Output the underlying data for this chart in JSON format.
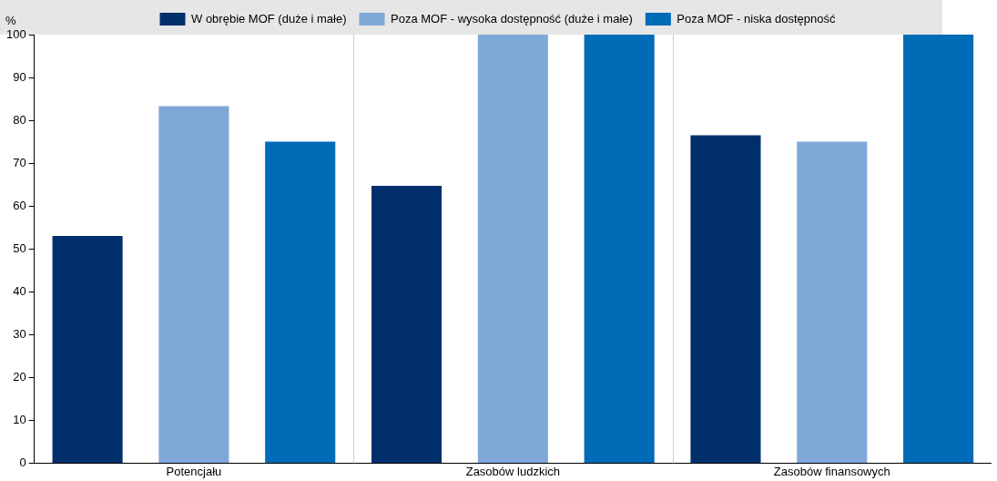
{
  "chart_data": {
    "type": "bar",
    "ylabel": "%",
    "categories": [
      "Potencjału",
      "Zasobów ludzkich",
      "Zasobów finansowych"
    ],
    "series": [
      {
        "name": "W obrębie MOF (duże i małe)",
        "color": "#002f6c",
        "values": [
          53,
          64.7,
          76.5
        ]
      },
      {
        "name": "Poza MOF - wysoka dostępność (duże i małe)",
        "color": "#7fa8d9",
        "values": [
          83.3,
          100,
          75
        ]
      },
      {
        "name": "Poza MOF - niska dostępność",
        "color": "#006bb6",
        "values": [
          75,
          100,
          100
        ]
      }
    ],
    "ylim": [
      0,
      100
    ],
    "yticks": [
      0,
      10,
      20,
      30,
      40,
      50,
      60,
      70,
      80,
      90,
      100
    ],
    "grid": "x",
    "legend": "top"
  }
}
